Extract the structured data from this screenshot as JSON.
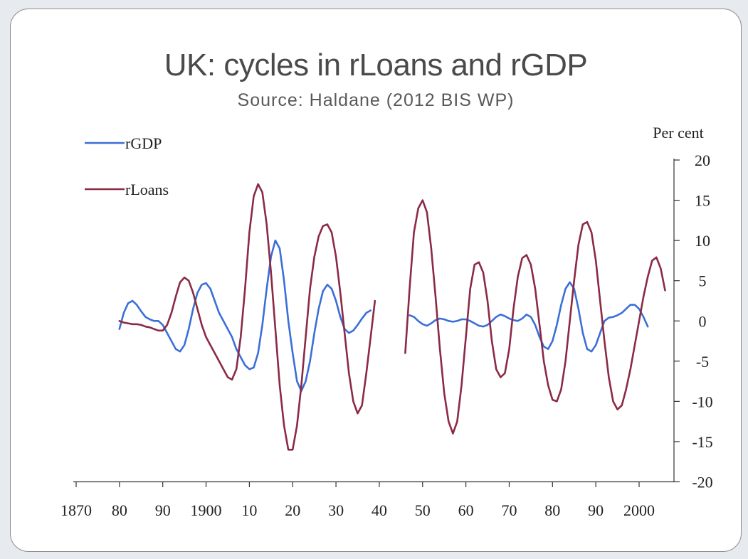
{
  "slide": {
    "title": "UK: cycles in rLoans and rGDP",
    "subtitle": "Source: Haldane (2012 BIS WP)"
  },
  "chart_data": {
    "type": "line",
    "ylabel": "Per cent",
    "ylim": [
      -20,
      20
    ],
    "yticks": [
      20,
      15,
      10,
      5,
      0,
      -5,
      -10,
      -15,
      -20
    ],
    "xlim": [
      1870,
      2010
    ],
    "xticks": [
      1870,
      1880,
      1890,
      1900,
      1910,
      1920,
      1930,
      1940,
      1950,
      1960,
      1970,
      1980,
      1990,
      2000
    ],
    "xticklabels": [
      "1870",
      "80",
      "90",
      "1900",
      "10",
      "20",
      "30",
      "40",
      "50",
      "60",
      "70",
      "80",
      "90",
      "2000"
    ],
    "legend_position": "top-left",
    "grid": false,
    "series": [
      {
        "name": "rGDP",
        "color": "#3b6fd8",
        "segments": [
          [
            [
              1880,
              -1
            ],
            [
              1881,
              1
            ],
            [
              1882,
              2.2
            ],
            [
              1883,
              2.5
            ],
            [
              1884,
              2
            ],
            [
              1885,
              1.2
            ],
            [
              1886,
              0.5
            ],
            [
              1887,
              0.2
            ],
            [
              1888,
              0
            ],
            [
              1889,
              0
            ],
            [
              1890,
              -0.5
            ],
            [
              1891,
              -1.5
            ],
            [
              1892,
              -2.5
            ],
            [
              1893,
              -3.5
            ],
            [
              1894,
              -3.8
            ],
            [
              1895,
              -3
            ],
            [
              1896,
              -1
            ],
            [
              1897,
              1.5
            ],
            [
              1898,
              3.5
            ],
            [
              1899,
              4.5
            ],
            [
              1900,
              4.7
            ],
            [
              1901,
              4
            ],
            [
              1902,
              2.5
            ],
            [
              1903,
              1
            ],
            [
              1904,
              0
            ],
            [
              1905,
              -1
            ],
            [
              1906,
              -2
            ],
            [
              1907,
              -3.5
            ],
            [
              1908,
              -4.5
            ],
            [
              1909,
              -5.5
            ],
            [
              1910,
              -6
            ],
            [
              1911,
              -5.8
            ],
            [
              1912,
              -4
            ],
            [
              1913,
              -0.5
            ],
            [
              1914,
              4
            ],
            [
              1915,
              8
            ],
            [
              1916,
              10
            ],
            [
              1917,
              9
            ],
            [
              1918,
              5
            ],
            [
              1919,
              0
            ],
            [
              1920,
              -4
            ],
            [
              1921,
              -7.5
            ],
            [
              1922,
              -8.7
            ],
            [
              1923,
              -7.5
            ],
            [
              1924,
              -5
            ],
            [
              1925,
              -1.5
            ],
            [
              1926,
              1.5
            ],
            [
              1927,
              3.7
            ],
            [
              1928,
              4.5
            ],
            [
              1929,
              4
            ],
            [
              1930,
              2.5
            ],
            [
              1931,
              0.5
            ],
            [
              1932,
              -1
            ],
            [
              1933,
              -1.5
            ],
            [
              1934,
              -1.2
            ],
            [
              1935,
              -0.5
            ],
            [
              1936,
              0.3
            ],
            [
              1937,
              1
            ],
            [
              1938,
              1.3
            ]
          ],
          [
            [
              1947,
              0.7
            ],
            [
              1948,
              0.5
            ],
            [
              1949,
              0
            ],
            [
              1950,
              -0.4
            ],
            [
              1951,
              -0.6
            ],
            [
              1952,
              -0.3
            ],
            [
              1953,
              0.1
            ],
            [
              1954,
              0.3
            ],
            [
              1955,
              0.2
            ],
            [
              1956,
              0
            ],
            [
              1957,
              -0.1
            ],
            [
              1958,
              0
            ],
            [
              1959,
              0.2
            ],
            [
              1960,
              0.2
            ],
            [
              1961,
              0
            ],
            [
              1962,
              -0.3
            ],
            [
              1963,
              -0.6
            ],
            [
              1964,
              -0.7
            ],
            [
              1965,
              -0.5
            ],
            [
              1966,
              0
            ],
            [
              1967,
              0.5
            ],
            [
              1968,
              0.8
            ],
            [
              1969,
              0.6
            ],
            [
              1970,
              0.3
            ],
            [
              1971,
              0.1
            ],
            [
              1972,
              0
            ],
            [
              1973,
              0.3
            ],
            [
              1974,
              0.8
            ],
            [
              1975,
              0.5
            ],
            [
              1976,
              -0.5
            ],
            [
              1977,
              -2
            ],
            [
              1978,
              -3.2
            ],
            [
              1979,
              -3.5
            ],
            [
              1980,
              -2.5
            ],
            [
              1981,
              -0.5
            ],
            [
              1982,
              2
            ],
            [
              1983,
              4
            ],
            [
              1984,
              4.8
            ],
            [
              1985,
              4
            ],
            [
              1986,
              1.5
            ],
            [
              1987,
              -1.5
            ],
            [
              1988,
              -3.5
            ],
            [
              1989,
              -3.8
            ],
            [
              1990,
              -3
            ],
            [
              1991,
              -1.5
            ],
            [
              1992,
              0
            ],
            [
              1993,
              0.4
            ],
            [
              1994,
              0.5
            ],
            [
              1995,
              0.7
            ],
            [
              1996,
              1
            ],
            [
              1997,
              1.5
            ],
            [
              1998,
              2
            ],
            [
              1999,
              2
            ],
            [
              2000,
              1.5
            ],
            [
              2001,
              0.5
            ],
            [
              2002,
              -0.7
            ]
          ]
        ]
      },
      {
        "name": "rLoans",
        "color": "#8b2a45",
        "segments": [
          [
            [
              1880,
              0
            ],
            [
              1881,
              -0.2
            ],
            [
              1882,
              -0.3
            ],
            [
              1883,
              -0.4
            ],
            [
              1884,
              -0.4
            ],
            [
              1885,
              -0.5
            ],
            [
              1886,
              -0.7
            ],
            [
              1887,
              -0.8
            ],
            [
              1888,
              -1
            ],
            [
              1889,
              -1.2
            ],
            [
              1890,
              -1.2
            ],
            [
              1891,
              -0.5
            ],
            [
              1892,
              1
            ],
            [
              1893,
              3
            ],
            [
              1894,
              4.8
            ],
            [
              1895,
              5.4
            ],
            [
              1896,
              5
            ],
            [
              1897,
              3.5
            ],
            [
              1898,
              1.5
            ],
            [
              1899,
              -0.5
            ],
            [
              1900,
              -2
            ],
            [
              1901,
              -3
            ],
            [
              1902,
              -4
            ],
            [
              1903,
              -5
            ],
            [
              1904,
              -6
            ],
            [
              1905,
              -7
            ],
            [
              1906,
              -7.3
            ],
            [
              1907,
              -6
            ],
            [
              1908,
              -2
            ],
            [
              1909,
              4
            ],
            [
              1910,
              11
            ],
            [
              1911,
              15.5
            ],
            [
              1912,
              17
            ],
            [
              1913,
              16
            ],
            [
              1914,
              12
            ],
            [
              1915,
              6
            ],
            [
              1916,
              -1
            ],
            [
              1917,
              -8
            ],
            [
              1918,
              -13
            ],
            [
              1919,
              -16
            ],
            [
              1920,
              -16
            ],
            [
              1921,
              -13
            ],
            [
              1922,
              -8
            ],
            [
              1923,
              -2
            ],
            [
              1924,
              4
            ],
            [
              1925,
              8
            ],
            [
              1926,
              10.5
            ],
            [
              1927,
              11.8
            ],
            [
              1928,
              12
            ],
            [
              1929,
              11
            ],
            [
              1930,
              8
            ],
            [
              1931,
              3.5
            ],
            [
              1932,
              -1.5
            ],
            [
              1933,
              -6.5
            ],
            [
              1934,
              -10
            ],
            [
              1935,
              -11.5
            ],
            [
              1936,
              -10.5
            ],
            [
              1937,
              -6.5
            ],
            [
              1938,
              -2
            ],
            [
              1939,
              2.5
            ]
          ],
          [
            [
              1946,
              -4
            ],
            [
              1947,
              4
            ],
            [
              1948,
              11
            ],
            [
              1949,
              14
            ],
            [
              1950,
              15
            ],
            [
              1951,
              13.5
            ],
            [
              1952,
              9
            ],
            [
              1953,
              3
            ],
            [
              1954,
              -3.5
            ],
            [
              1955,
              -9
            ],
            [
              1956,
              -12.5
            ],
            [
              1957,
              -14
            ],
            [
              1958,
              -12.5
            ],
            [
              1959,
              -8
            ],
            [
              1960,
              -2
            ],
            [
              1961,
              4
            ],
            [
              1962,
              7
            ],
            [
              1963,
              7.3
            ],
            [
              1964,
              6
            ],
            [
              1965,
              2.5
            ],
            [
              1966,
              -2.5
            ],
            [
              1967,
              -6
            ],
            [
              1968,
              -7
            ],
            [
              1969,
              -6.5
            ],
            [
              1970,
              -3.5
            ],
            [
              1971,
              1.5
            ],
            [
              1972,
              5.5
            ],
            [
              1973,
              7.8
            ],
            [
              1974,
              8.2
            ],
            [
              1975,
              7
            ],
            [
              1976,
              4
            ],
            [
              1977,
              -0.5
            ],
            [
              1978,
              -5
            ],
            [
              1979,
              -8
            ],
            [
              1980,
              -9.8
            ],
            [
              1981,
              -10
            ],
            [
              1982,
              -8.5
            ],
            [
              1983,
              -5
            ],
            [
              1984,
              0
            ],
            [
              1985,
              5
            ],
            [
              1986,
              9.5
            ],
            [
              1987,
              12
            ],
            [
              1988,
              12.3
            ],
            [
              1989,
              11
            ],
            [
              1990,
              7.5
            ],
            [
              1991,
              2.5
            ],
            [
              1992,
              -2.5
            ],
            [
              1993,
              -7
            ],
            [
              1994,
              -10
            ],
            [
              1995,
              -11
            ],
            [
              1996,
              -10.5
            ],
            [
              1997,
              -8.5
            ],
            [
              1998,
              -6
            ],
            [
              1999,
              -3
            ],
            [
              2000,
              0
            ],
            [
              2001,
              3
            ],
            [
              2002,
              5.5
            ],
            [
              2003,
              7.5
            ],
            [
              2004,
              7.9
            ],
            [
              2005,
              6.5
            ],
            [
              2006,
              3.8
            ]
          ]
        ]
      }
    ]
  }
}
